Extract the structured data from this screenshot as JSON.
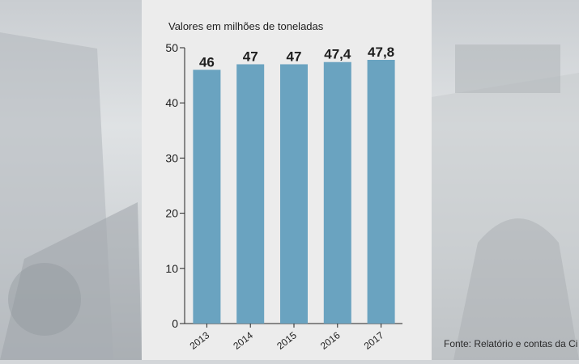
{
  "chart_data": {
    "type": "bar",
    "subtitle": "Valores em milhões de toneladas",
    "categories": [
      "2013",
      "2014",
      "2015",
      "2016",
      "2017"
    ],
    "values": [
      46,
      47,
      47,
      47.4,
      47.8
    ],
    "value_labels": [
      "46",
      "47",
      "47",
      "47,4",
      "47,8"
    ],
    "ylim": [
      0,
      50
    ],
    "yticks": [
      "0",
      "10",
      "20",
      "30",
      "40",
      "50"
    ],
    "grid": false,
    "bar_color": "#6aa3c0"
  },
  "source": "Fonte: Relatório e contas da Ci"
}
